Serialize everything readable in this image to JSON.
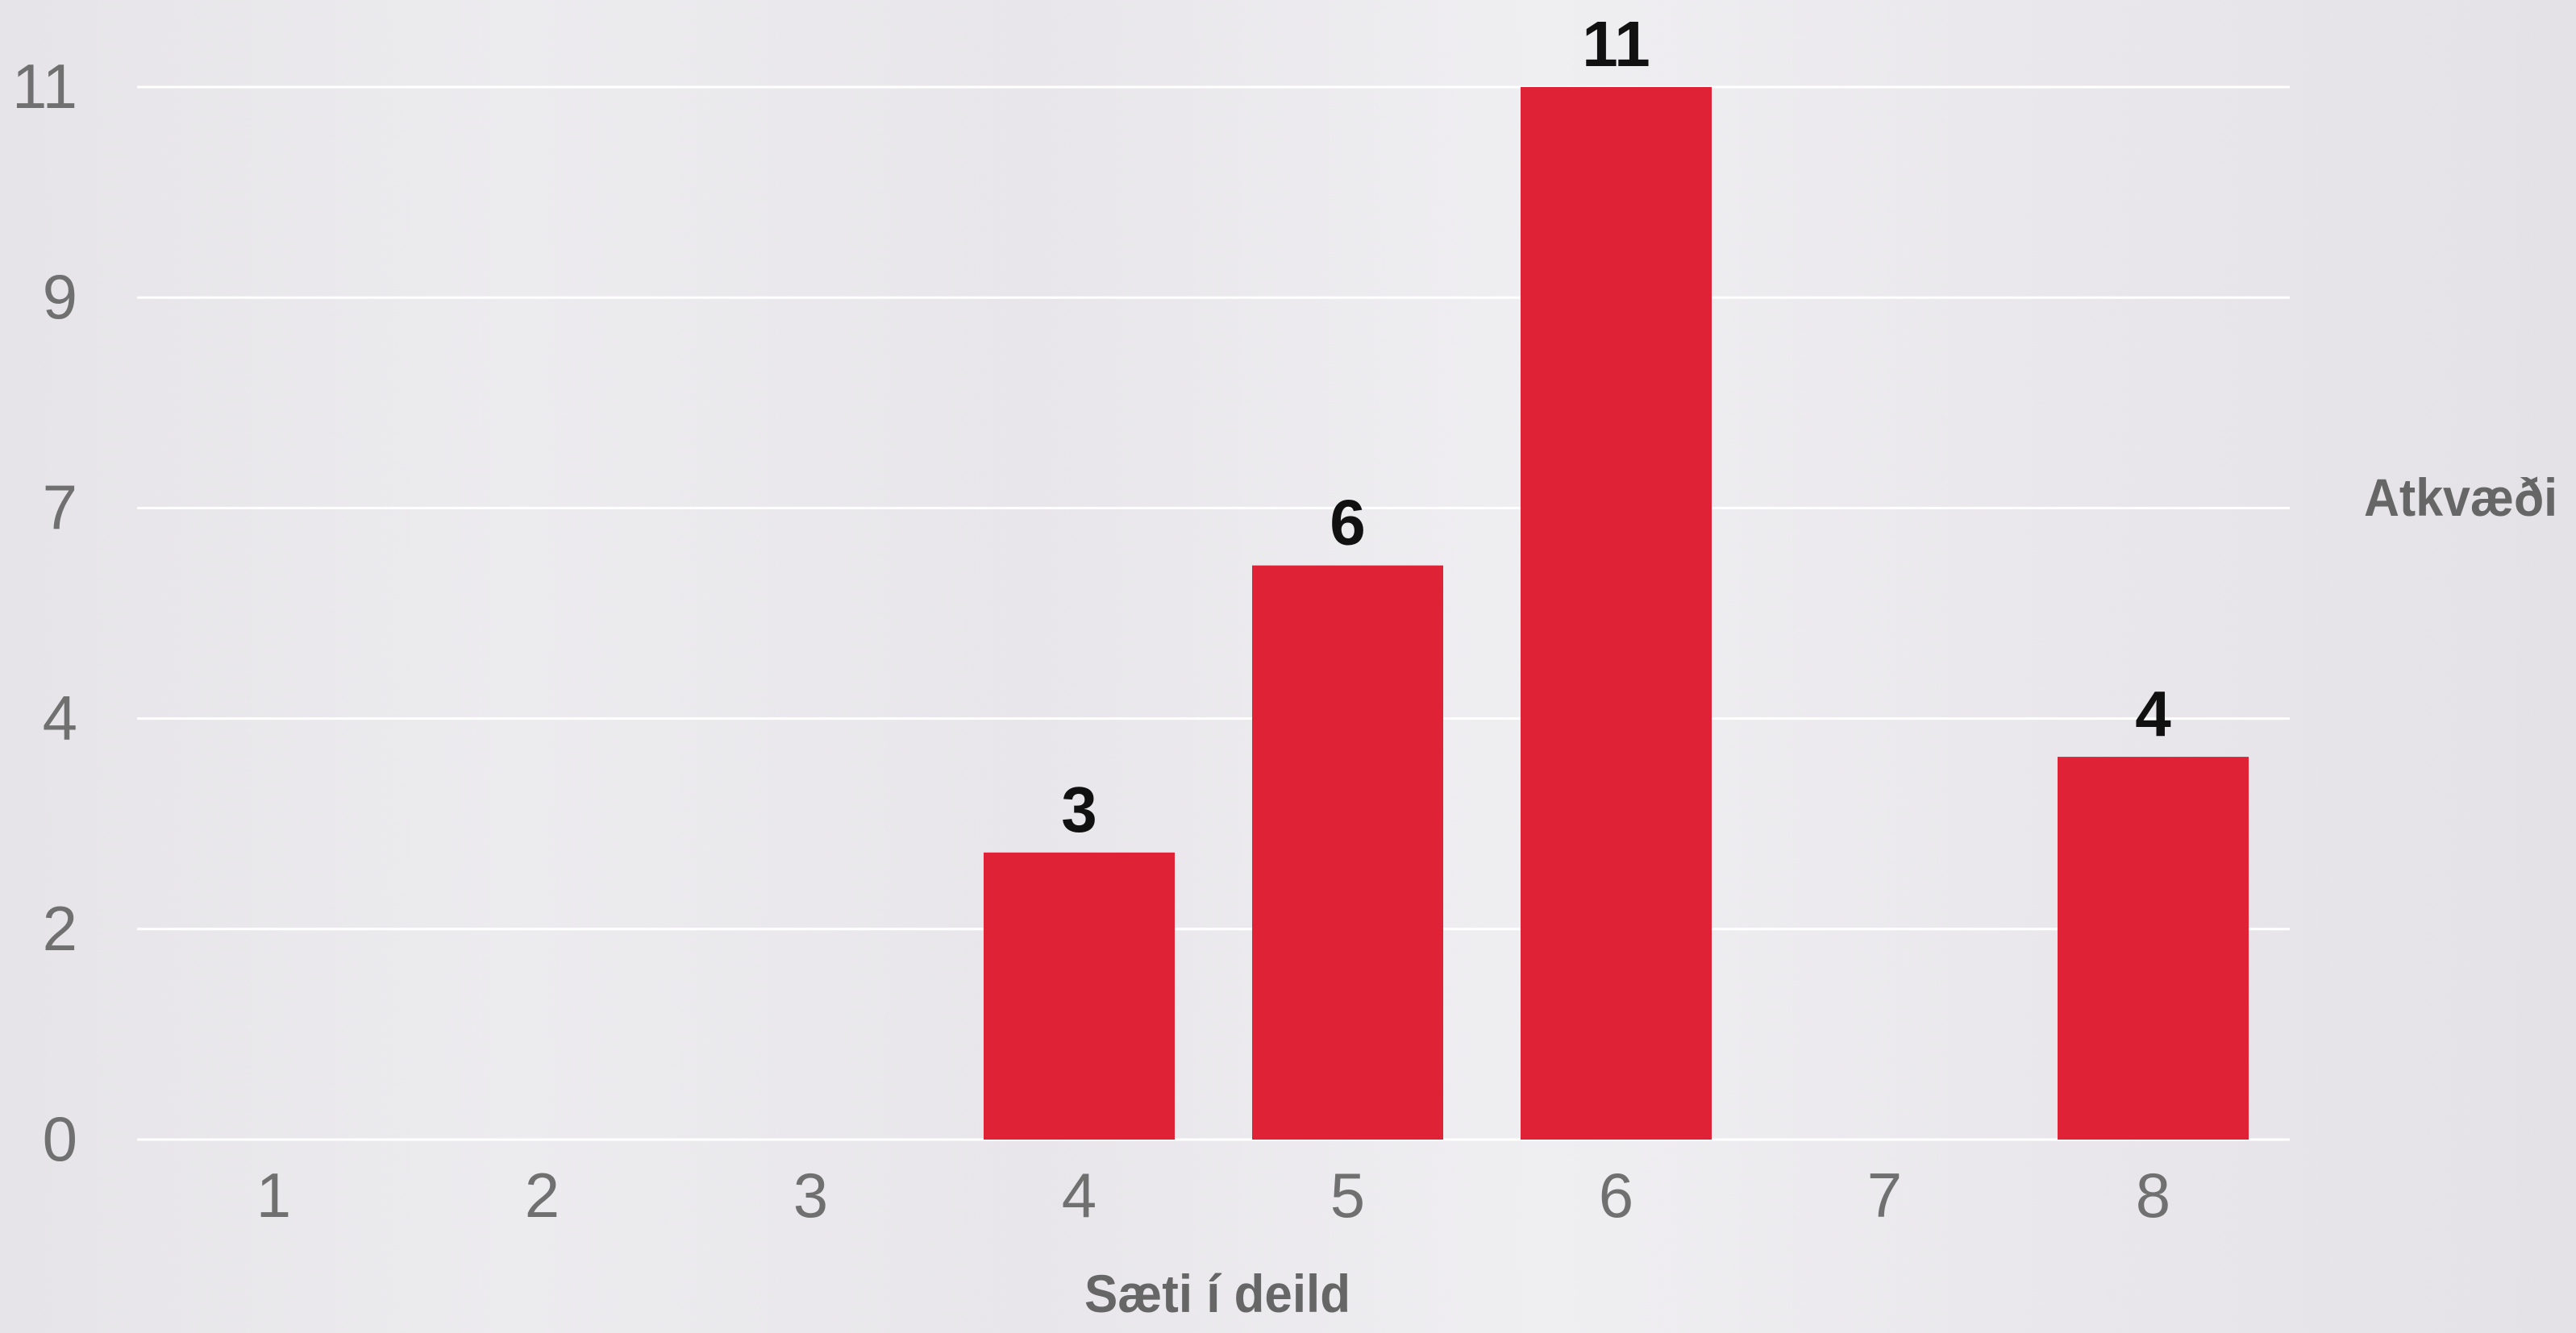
{
  "chart_data": {
    "type": "bar",
    "categories": [
      "1",
      "2",
      "3",
      "4",
      "5",
      "6",
      "7",
      "8"
    ],
    "values": [
      0,
      0,
      0,
      3,
      6,
      11,
      0,
      4
    ],
    "data_labels": [
      "",
      "",
      "",
      "3",
      "6",
      "11",
      "",
      "4"
    ],
    "xlabel": "Sæti í deild",
    "ylabel": "Atkvæði",
    "y_ticks": [
      "0",
      "2",
      "4",
      "7",
      "9",
      "11"
    ],
    "y_tick_values": [
      0,
      2.2,
      4.4,
      6.6,
      8.8,
      11
    ],
    "ylim": [
      0,
      11
    ],
    "grid": true,
    "bar_color": "#e02236",
    "colors": {
      "tick_label": "#707070",
      "axis_title": "#666666",
      "data_label": "#111111",
      "gridline": "#ffffff"
    }
  }
}
